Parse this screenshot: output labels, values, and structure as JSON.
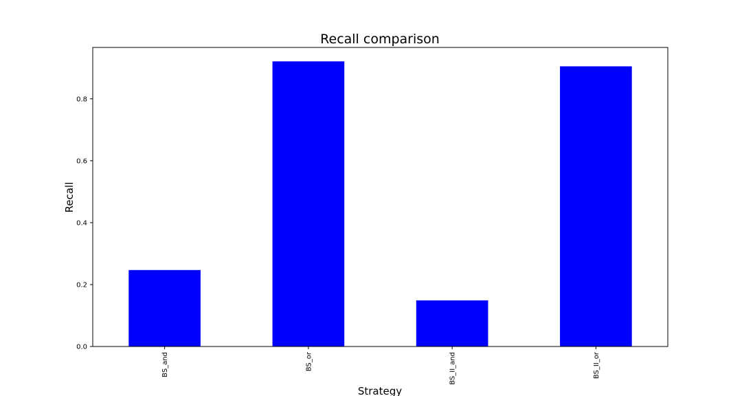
{
  "chart_data": {
    "type": "bar",
    "title": "Recall comparison",
    "xlabel": "Strategy",
    "ylabel": "Recall",
    "categories": [
      "BS_and",
      "BS_or",
      "BS_II_and",
      "BS_II_or"
    ],
    "values": [
      0.247,
      0.921,
      0.149,
      0.905
    ],
    "ylim": [
      0,
      0.966
    ],
    "yticks": [
      0.0,
      0.2,
      0.4,
      0.6,
      0.8
    ],
    "ytick_labels": [
      "0.0",
      "0.2",
      "0.4",
      "0.6",
      "0.8"
    ],
    "bar_color": "#0000ff",
    "grid": false,
    "legend": "none"
  }
}
